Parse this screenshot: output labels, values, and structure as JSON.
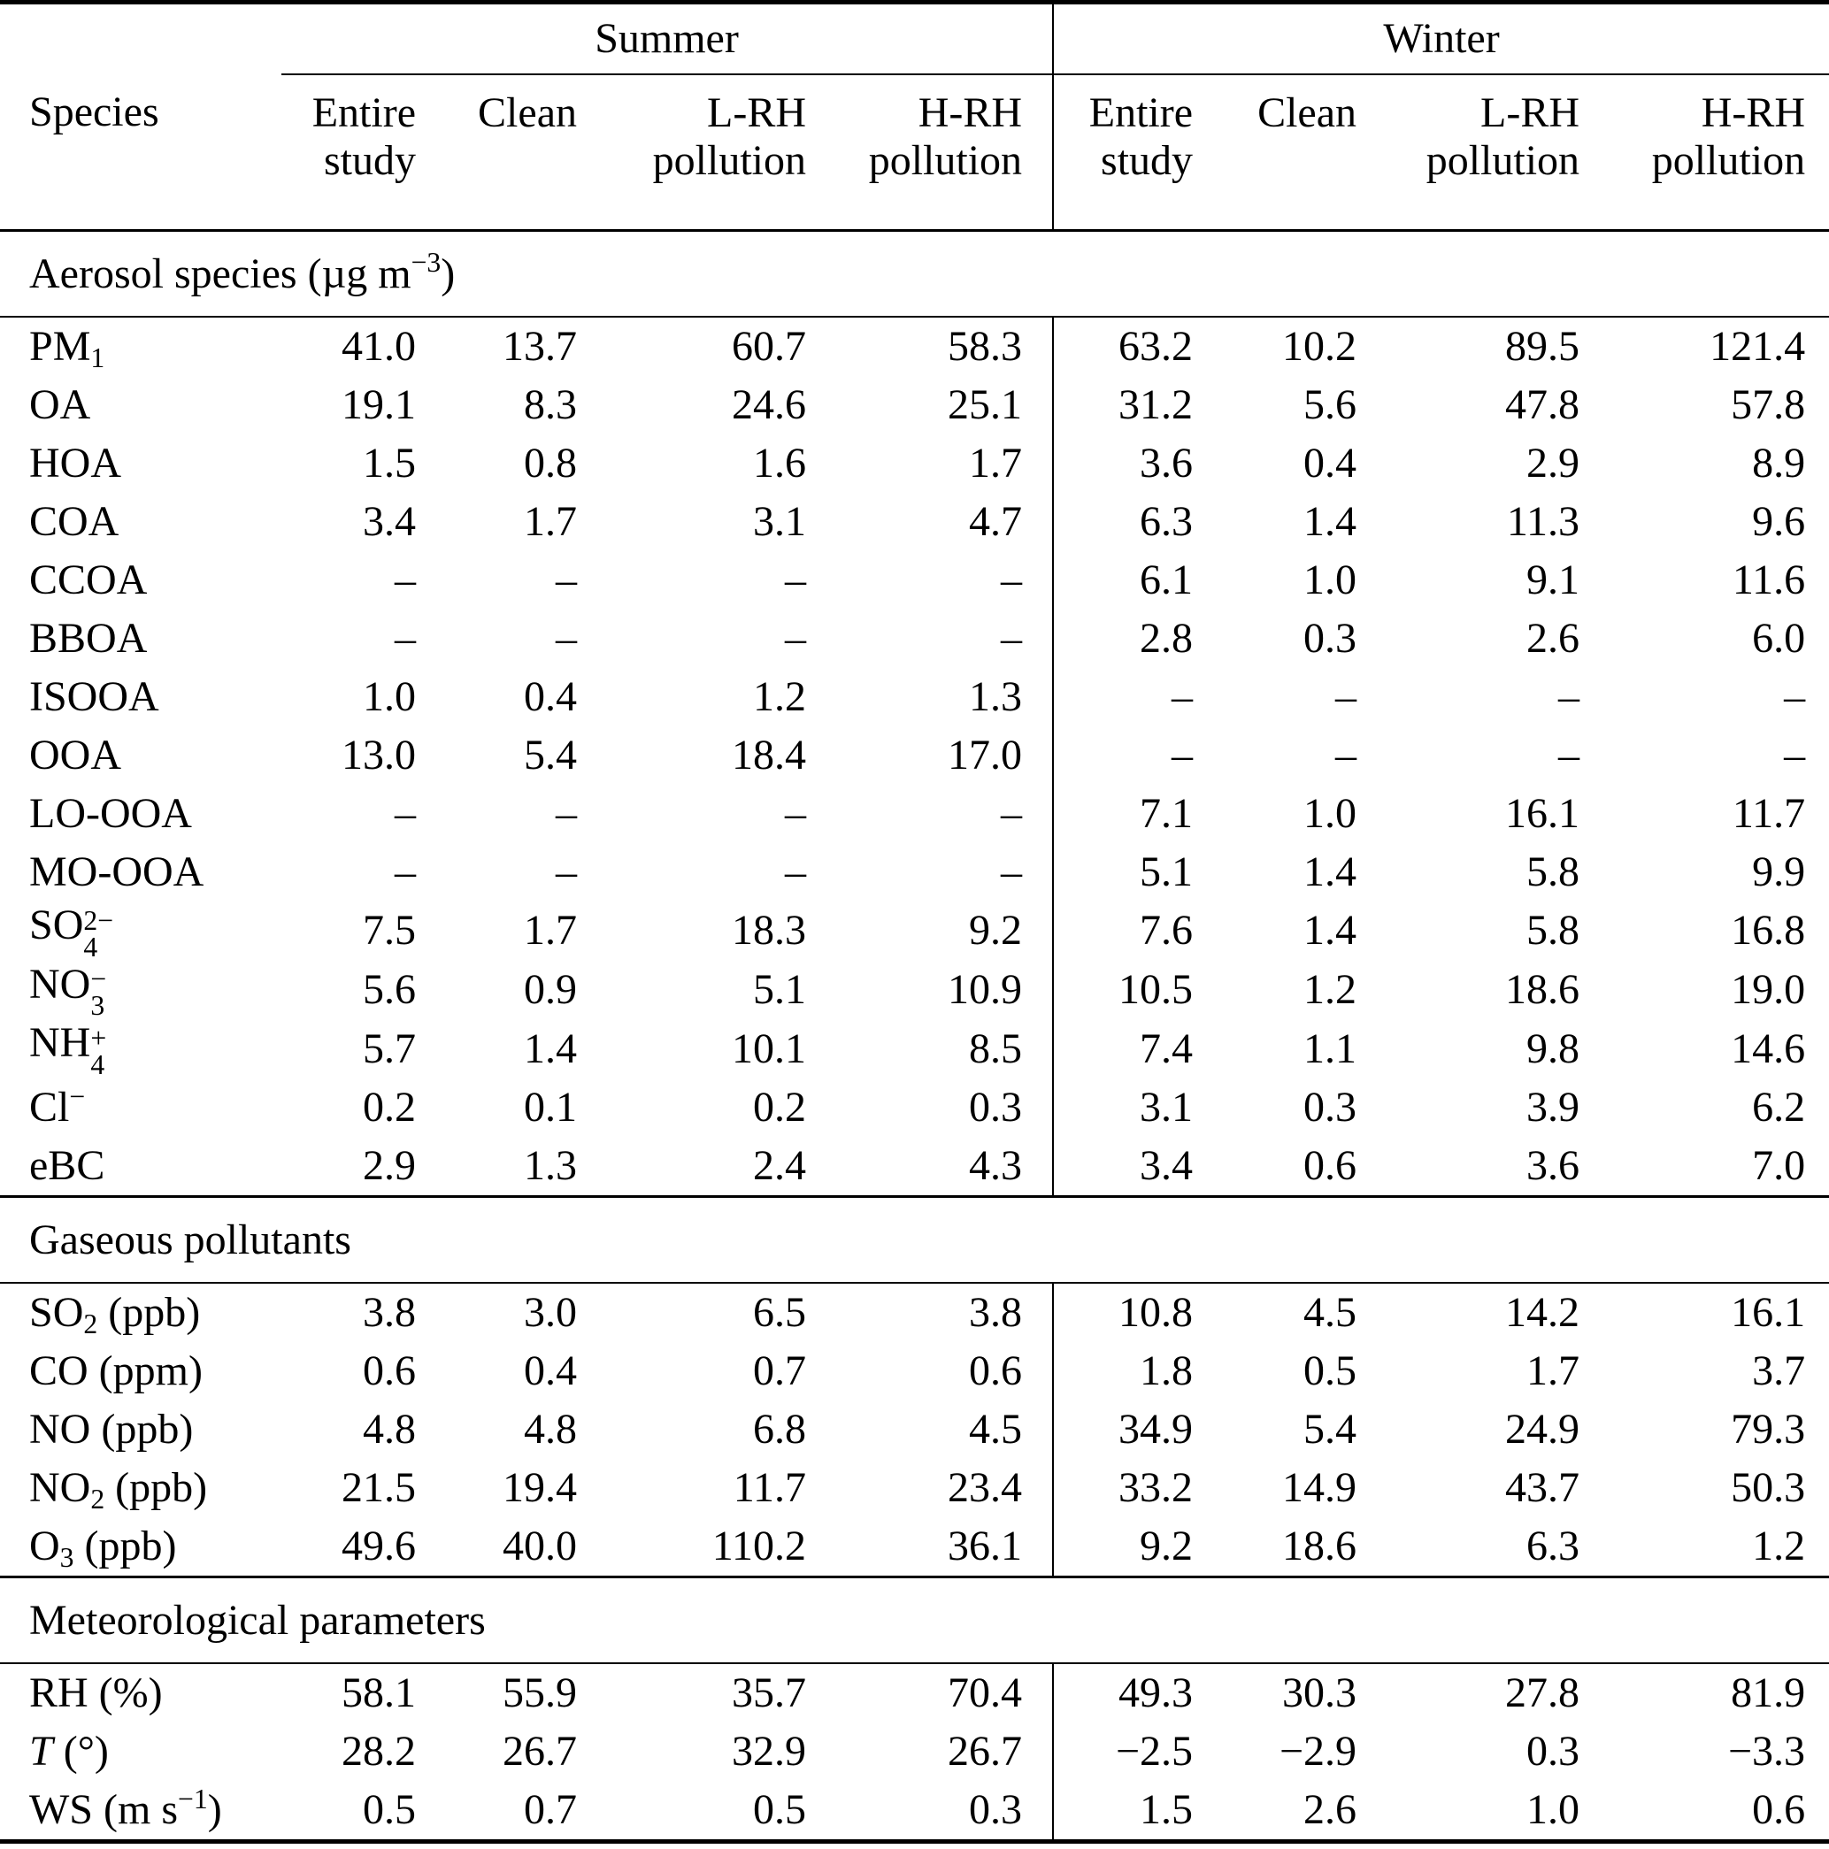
{
  "table": {
    "species_header": "Species",
    "group_headers": [
      {
        "label": "Summer"
      },
      {
        "label": "Winter"
      }
    ],
    "column_headers": [
      {
        "line1": "Entire",
        "line2": "study"
      },
      {
        "line1": "Clean",
        "line2": ""
      },
      {
        "line1": "L-RH",
        "line2": "pollution"
      },
      {
        "line1": "H-RH",
        "line2": "pollution"
      },
      {
        "line1": "Entire",
        "line2": "study"
      },
      {
        "line1": "Clean",
        "line2": ""
      },
      {
        "line1": "L-RH",
        "line2": "pollution"
      },
      {
        "line1": "H-RH",
        "line2": "pollution"
      }
    ],
    "sections": [
      {
        "title": [
          {
            "t": "Aerosol species (µg m"
          },
          {
            "t": "−3",
            "m": "sup"
          },
          {
            "t": ")"
          }
        ],
        "rows": [
          {
            "species": [
              {
                "t": "PM"
              },
              {
                "t": "1",
                "m": "sub"
              }
            ],
            "values": [
              "41.0",
              "13.7",
              "60.7",
              "58.3",
              "63.2",
              "10.2",
              "89.5",
              "121.4"
            ]
          },
          {
            "species": [
              {
                "t": "OA"
              }
            ],
            "values": [
              "19.1",
              "8.3",
              "24.6",
              "25.1",
              "31.2",
              "5.6",
              "47.8",
              "57.8"
            ]
          },
          {
            "species": [
              {
                "t": "HOA"
              }
            ],
            "values": [
              "1.5",
              "0.8",
              "1.6",
              "1.7",
              "3.6",
              "0.4",
              "2.9",
              "8.9"
            ]
          },
          {
            "species": [
              {
                "t": "COA"
              }
            ],
            "values": [
              "3.4",
              "1.7",
              "3.1",
              "4.7",
              "6.3",
              "1.4",
              "11.3",
              "9.6"
            ]
          },
          {
            "species": [
              {
                "t": "CCOA"
              }
            ],
            "values": [
              "–",
              "–",
              "–",
              "–",
              "6.1",
              "1.0",
              "9.1",
              "11.6"
            ]
          },
          {
            "species": [
              {
                "t": "BBOA"
              }
            ],
            "values": [
              "–",
              "–",
              "–",
              "–",
              "2.8",
              "0.3",
              "2.6",
              "6.0"
            ]
          },
          {
            "species": [
              {
                "t": "ISOOA"
              }
            ],
            "values": [
              "1.0",
              "0.4",
              "1.2",
              "1.3",
              "–",
              "–",
              "–",
              "–"
            ]
          },
          {
            "species": [
              {
                "t": "OOA"
              }
            ],
            "values": [
              "13.0",
              "5.4",
              "18.4",
              "17.0",
              "–",
              "–",
              "–",
              "–"
            ]
          },
          {
            "species": [
              {
                "t": "LO-OOA"
              }
            ],
            "values": [
              "–",
              "–",
              "–",
              "–",
              "7.1",
              "1.0",
              "16.1",
              "11.7"
            ]
          },
          {
            "species": [
              {
                "t": "MO-OOA"
              }
            ],
            "values": [
              "–",
              "–",
              "–",
              "–",
              "5.1",
              "1.4",
              "5.8",
              "9.9"
            ]
          },
          {
            "species": [
              {
                "t": "SO"
              },
              {
                "m": "stack",
                "sup": "2−",
                "sub": "4"
              }
            ],
            "values": [
              "7.5",
              "1.7",
              "18.3",
              "9.2",
              "7.6",
              "1.4",
              "5.8",
              "16.8"
            ]
          },
          {
            "species": [
              {
                "t": "NO"
              },
              {
                "m": "stack",
                "sup": "−",
                "sub": "3"
              }
            ],
            "values": [
              "5.6",
              "0.9",
              "5.1",
              "10.9",
              "10.5",
              "1.2",
              "18.6",
              "19.0"
            ]
          },
          {
            "species": [
              {
                "t": "NH"
              },
              {
                "m": "stack",
                "sup": "+",
                "sub": "4"
              }
            ],
            "values": [
              "5.7",
              "1.4",
              "10.1",
              "8.5",
              "7.4",
              "1.1",
              "9.8",
              "14.6"
            ]
          },
          {
            "species": [
              {
                "t": "Cl"
              },
              {
                "t": "−",
                "m": "sup"
              }
            ],
            "values": [
              "0.2",
              "0.1",
              "0.2",
              "0.3",
              "3.1",
              "0.3",
              "3.9",
              "6.2"
            ]
          },
          {
            "species": [
              {
                "t": "eBC"
              }
            ],
            "values": [
              "2.9",
              "1.3",
              "2.4",
              "4.3",
              "3.4",
              "0.6",
              "3.6",
              "7.0"
            ]
          }
        ]
      },
      {
        "title": [
          {
            "t": "Gaseous pollutants"
          }
        ],
        "rows": [
          {
            "species": [
              {
                "t": "SO"
              },
              {
                "t": "2",
                "m": "sub"
              },
              {
                "t": " (ppb)"
              }
            ],
            "values": [
              "3.8",
              "3.0",
              "6.5",
              "3.8",
              "10.8",
              "4.5",
              "14.2",
              "16.1"
            ]
          },
          {
            "species": [
              {
                "t": "CO (ppm)"
              }
            ],
            "values": [
              "0.6",
              "0.4",
              "0.7",
              "0.6",
              "1.8",
              "0.5",
              "1.7",
              "3.7"
            ]
          },
          {
            "species": [
              {
                "t": "NO (ppb)"
              }
            ],
            "values": [
              "4.8",
              "4.8",
              "6.8",
              "4.5",
              "34.9",
              "5.4",
              "24.9",
              "79.3"
            ]
          },
          {
            "species": [
              {
                "t": "NO"
              },
              {
                "t": "2",
                "m": "sub"
              },
              {
                "t": " (ppb)"
              }
            ],
            "values": [
              "21.5",
              "19.4",
              "11.7",
              "23.4",
              "33.2",
              "14.9",
              "43.7",
              "50.3"
            ]
          },
          {
            "species": [
              {
                "t": "O"
              },
              {
                "t": "3",
                "m": "sub"
              },
              {
                "t": " (ppb)"
              }
            ],
            "values": [
              "49.6",
              "40.0",
              "110.2",
              "36.1",
              "9.2",
              "18.6",
              "6.3",
              "1.2"
            ]
          }
        ]
      },
      {
        "title": [
          {
            "t": "Meteorological parameters"
          }
        ],
        "rows": [
          {
            "species": [
              {
                "t": "RH (%)"
              }
            ],
            "values": [
              "58.1",
              "55.9",
              "35.7",
              "70.4",
              "49.3",
              "30.3",
              "27.8",
              "81.9"
            ]
          },
          {
            "species": [
              {
                "t": "T",
                "m": "i"
              },
              {
                "t": " (°)"
              }
            ],
            "values": [
              "28.2",
              "26.7",
              "32.9",
              "26.7",
              "−2.5",
              "−2.9",
              "0.3",
              "−3.3"
            ]
          },
          {
            "species": [
              {
                "t": "WS (m s"
              },
              {
                "t": "−1",
                "m": "sup"
              },
              {
                "t": ")"
              }
            ],
            "values": [
              "0.5",
              "0.7",
              "0.5",
              "0.3",
              "1.5",
              "2.6",
              "1.0",
              "0.6"
            ]
          }
        ]
      }
    ]
  }
}
